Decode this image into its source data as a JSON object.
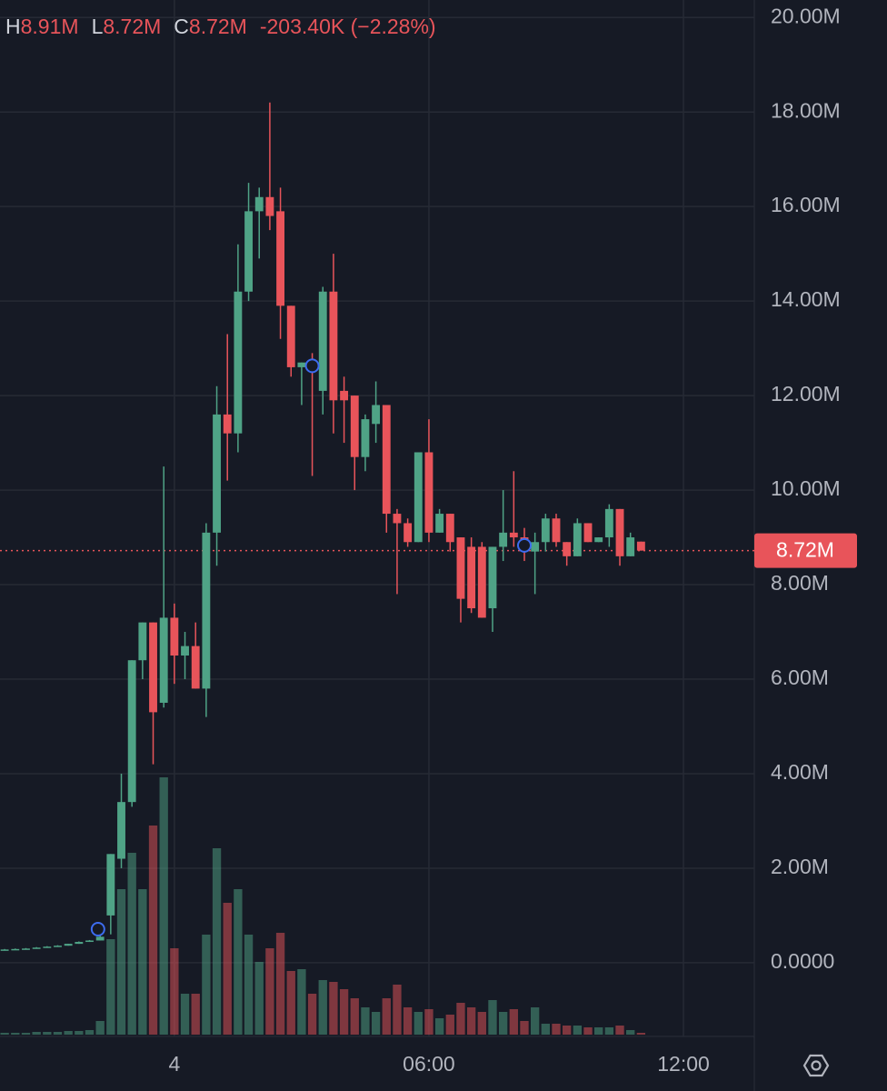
{
  "chart_data": {
    "type": "candlestick",
    "ohlc_header": {
      "items": [
        {
          "label": "H",
          "value": "8.91M"
        },
        {
          "label": "L",
          "value": "8.72M"
        },
        {
          "label": "C",
          "value": "8.72M"
        }
      ],
      "change": "-203.40K (−2.28%)"
    },
    "x": [
      -4,
      -3.75,
      -3.5,
      -3.25,
      -3,
      -2.75,
      -2.5,
      -2.25,
      -2,
      -1.75,
      -1.5,
      -1.25,
      -1,
      -0.75,
      -0.5,
      -0.25,
      0,
      0.25,
      0.5,
      0.75,
      1,
      1.25,
      1.5,
      1.75,
      2,
      2.25,
      2.5,
      2.75,
      3,
      3.25,
      3.5,
      3.75,
      4,
      4.25,
      4.5,
      4.75,
      5,
      5.25,
      5.5,
      5.75,
      6,
      6.25,
      6.5,
      6.75,
      7,
      7.25,
      7.5,
      7.75,
      8,
      8.25,
      8.5,
      8.75,
      9,
      9.25,
      9.5,
      9.75,
      10,
      10.25,
      10.5,
      10.75,
      11
    ],
    "open": [
      0.27,
      0.28,
      0.29,
      0.3,
      0.32,
      0.34,
      0.36,
      0.4,
      0.44,
      0.47,
      1.0,
      2.2,
      3.4,
      6.4,
      7.2,
      5.5,
      7.3,
      6.5,
      6.7,
      5.8,
      9.1,
      11.6,
      11.2,
      14.2,
      15.9,
      16.2,
      15.9,
      13.9,
      12.6,
      12.7,
      12.1,
      14.2,
      12.1,
      12.0,
      10.7,
      11.4,
      11.8,
      9.5,
      9.3,
      8.9,
      10.8,
      9.1,
      9.5,
      9.0,
      8.8,
      8.8,
      7.5,
      8.8,
      9.1,
      9.0,
      8.7,
      8.9,
      9.4,
      8.9,
      8.6,
      9.3,
      8.9,
      9.0,
      9.6,
      8.6,
      8.91
    ],
    "high": [
      0.29,
      0.3,
      0.31,
      0.33,
      0.35,
      0.37,
      0.4,
      0.45,
      0.48,
      0.6,
      2.3,
      4.0,
      6.4,
      7.2,
      7.2,
      10.5,
      7.6,
      7.0,
      7.2,
      9.3,
      12.2,
      13.3,
      15.2,
      16.5,
      16.4,
      18.2,
      16.4,
      13.9,
      12.7,
      12.9,
      14.3,
      15.0,
      12.4,
      12.0,
      11.6,
      12.3,
      11.8,
      9.6,
      9.4,
      10.8,
      11.5,
      9.6,
      9.5,
      9.0,
      9.0,
      8.9,
      8.8,
      10.0,
      10.4,
      9.2,
      9.1,
      9.5,
      9.5,
      8.9,
      9.4,
      9.3,
      9.0,
      9.7,
      9.6,
      9.1,
      8.91
    ],
    "low": [
      0.27,
      0.28,
      0.29,
      0.3,
      0.32,
      0.34,
      0.36,
      0.4,
      0.44,
      0.47,
      0.6,
      2.0,
      3.3,
      6.0,
      4.2,
      5.4,
      5.9,
      6.0,
      5.8,
      5.2,
      8.4,
      10.2,
      10.8,
      14.0,
      14.9,
      15.5,
      13.2,
      12.4,
      11.8,
      10.3,
      11.6,
      11.2,
      11.0,
      10.0,
      10.4,
      11.0,
      9.1,
      7.8,
      8.8,
      8.9,
      8.9,
      9.1,
      8.7,
      7.2,
      7.4,
      7.3,
      7.0,
      8.5,
      8.8,
      8.5,
      7.8,
      8.7,
      8.8,
      8.4,
      8.6,
      8.9,
      8.9,
      8.8,
      8.4,
      8.6,
      8.72
    ],
    "close": [
      0.28,
      0.29,
      0.3,
      0.32,
      0.34,
      0.36,
      0.4,
      0.44,
      0.47,
      0.55,
      2.3,
      3.4,
      6.4,
      7.2,
      5.3,
      7.3,
      6.5,
      6.7,
      5.8,
      9.1,
      11.6,
      11.2,
      14.2,
      15.9,
      16.2,
      15.8,
      13.9,
      12.6,
      12.7,
      12.6,
      14.2,
      11.9,
      11.9,
      10.7,
      11.5,
      11.8,
      9.5,
      9.3,
      8.9,
      10.8,
      9.1,
      9.5,
      8.9,
      7.7,
      7.5,
      7.3,
      8.8,
      9.1,
      9.0,
      8.7,
      8.9,
      9.4,
      8.9,
      8.6,
      9.3,
      8.9,
      9.0,
      9.6,
      8.6,
      9.0,
      8.72
    ],
    "volume": [
      2,
      2,
      2,
      3,
      3,
      3,
      4,
      4,
      5,
      15,
      105,
      160,
      200,
      160,
      230,
      283,
      95,
      45,
      45,
      110,
      205,
      145,
      160,
      110,
      80,
      95,
      112,
      70,
      72,
      45,
      60,
      58,
      50,
      40,
      30,
      25,
      40,
      55,
      30,
      25,
      28,
      18,
      22,
      35,
      30,
      25,
      38,
      25,
      28,
      15,
      30,
      12,
      12,
      10,
      10,
      8,
      8,
      8,
      10,
      5,
      2
    ],
    "vlim": [
      0,
      350
    ],
    "up_color": "#4fa386",
    "down_color": "#e8545a",
    "ylim": [
      -1.56,
      20.37
    ],
    "yticks": [
      {
        "value": 0,
        "label": "0.0000"
      },
      {
        "value": 2,
        "label": "2.00M"
      },
      {
        "value": 4,
        "label": "4.00M"
      },
      {
        "value": 6,
        "label": "6.00M"
      },
      {
        "value": 8,
        "label": "8.00M"
      },
      {
        "value": 10,
        "label": "10.00M"
      },
      {
        "value": 12,
        "label": "12.00M"
      },
      {
        "value": 14,
        "label": "14.00M"
      },
      {
        "value": 16,
        "label": "16.00M"
      },
      {
        "value": 18,
        "label": "18.00M"
      },
      {
        "value": 20,
        "label": "20.00M"
      }
    ],
    "xlim": [
      -4.11,
      13.67
    ],
    "xticks": [
      {
        "value": 0,
        "label": "4"
      },
      {
        "value": 6,
        "label": "06:00"
      },
      {
        "value": 12,
        "label": "12:00"
      }
    ],
    "grid": true,
    "last_price": {
      "value": 8.72,
      "label": "8.72M"
    },
    "markers": [
      {
        "x": -1.8,
        "y": 0.71
      },
      {
        "x": 3.25,
        "y": 12.63
      },
      {
        "x": 8.25,
        "y": 8.83
      }
    ]
  }
}
